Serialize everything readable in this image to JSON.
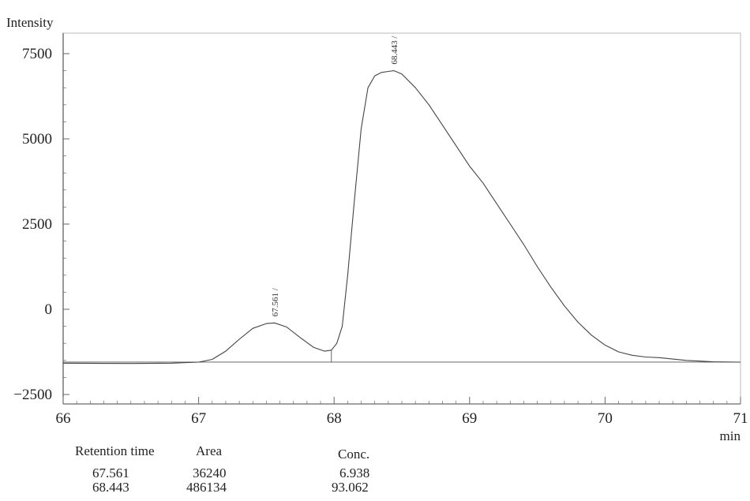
{
  "chart_data": {
    "type": "line",
    "ylabel": "Intensity",
    "xlabel": "min",
    "xlim": [
      66,
      71
    ],
    "ylim": [
      -2500,
      7500
    ],
    "x_ticks": [
      66,
      67,
      68,
      69,
      70,
      71
    ],
    "y_ticks": [
      7500,
      5000,
      2500,
      0,
      -2500
    ],
    "x_tick_labels": [
      "66",
      "67",
      "68",
      "69",
      "70",
      "71"
    ],
    "y_tick_labels": [
      "7500",
      "5000",
      "2500",
      "0",
      "−2500"
    ],
    "grid": false,
    "baseline": {
      "from": [
        66,
        -1550
      ],
      "to": [
        71,
        -1550
      ]
    },
    "drop_line_x": 67.98,
    "series": [
      {
        "x": [
          66.0,
          66.5,
          66.8,
          67.0,
          67.1,
          67.2,
          67.3,
          67.4,
          67.5,
          67.561,
          67.65,
          67.75,
          67.85,
          67.93,
          67.98,
          68.02,
          68.06,
          68.1,
          68.15,
          68.2,
          68.25,
          68.3,
          68.35,
          68.4,
          68.443,
          68.5,
          68.6,
          68.7,
          68.8,
          68.9,
          69.0,
          69.1,
          69.2,
          69.3,
          69.4,
          69.5,
          69.6,
          69.7,
          69.8,
          69.9,
          70.0,
          70.1,
          70.2,
          70.3,
          70.4,
          70.5,
          70.6,
          70.8,
          71.0
        ],
        "y": [
          -1580,
          -1590,
          -1580,
          -1550,
          -1470,
          -1230,
          -880,
          -560,
          -420,
          -400,
          -520,
          -830,
          -1120,
          -1230,
          -1200,
          -1000,
          -500,
          1000,
          3200,
          5300,
          6500,
          6850,
          6950,
          6980,
          7000,
          6900,
          6500,
          6000,
          5400,
          4800,
          4200,
          3700,
          3100,
          2500,
          1900,
          1250,
          650,
          100,
          -380,
          -760,
          -1050,
          -1250,
          -1350,
          -1400,
          -1420,
          -1460,
          -1500,
          -1540,
          -1550
        ]
      }
    ],
    "peaks": [
      {
        "retention_time": "67.561",
        "area": "36240",
        "conc": "6.938",
        "x": 67.561,
        "y": -400
      },
      {
        "retention_time": "68.443",
        "area": "486134",
        "conc": "93.062",
        "x": 68.443,
        "y": 7000
      }
    ]
  },
  "results_table": {
    "headers": {
      "retention_time": "Retention time",
      "area": "Area",
      "conc": "Conc."
    },
    "rows": [
      {
        "retention_time": "67.561",
        "area": "36240",
        "conc": "6.938"
      },
      {
        "retention_time": "68.443",
        "area": "486134",
        "conc": "93.062"
      }
    ]
  }
}
